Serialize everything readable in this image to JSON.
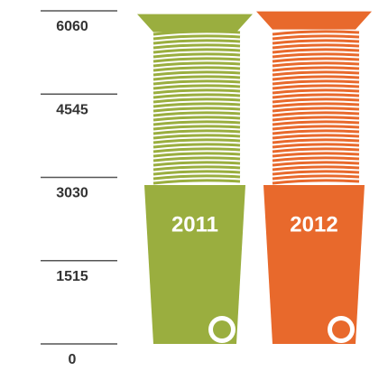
{
  "chart_data": {
    "type": "pictograph",
    "categories": [
      "2011",
      "2012"
    ],
    "values": [
      6000,
      6050
    ],
    "colors": [
      "#9aae3f",
      "#e8692c"
    ],
    "ylim": [
      0,
      6060
    ],
    "yticks": [
      0,
      1515,
      3030,
      4545,
      6060
    ]
  }
}
